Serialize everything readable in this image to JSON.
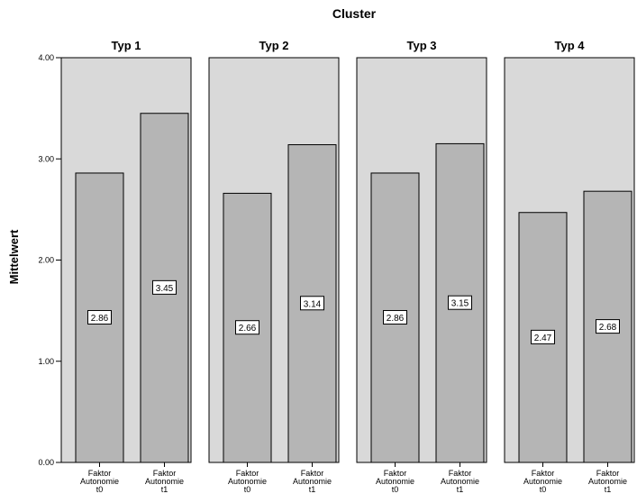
{
  "chart_data": {
    "type": "bar",
    "title": "Cluster",
    "ylabel": "Mittelwert",
    "xlabel": "",
    "ylim": [
      0,
      4
    ],
    "yticks": [
      "0.00",
      "1.00",
      "2.00",
      "3.00",
      "4.00"
    ],
    "categories": [
      [
        "Faktor",
        "Autonomie",
        "t0"
      ],
      [
        "Faktor",
        "Autonomie",
        "t1"
      ]
    ],
    "panels": [
      {
        "name": "Typ 1",
        "values": [
          2.86,
          3.45
        ],
        "labels": [
          "2.86",
          "3.45"
        ]
      },
      {
        "name": "Typ 2",
        "values": [
          2.66,
          3.14
        ],
        "labels": [
          "2.66",
          "3.14"
        ]
      },
      {
        "name": "Typ 3",
        "values": [
          2.86,
          3.15
        ],
        "labels": [
          "2.86",
          "3.15"
        ]
      },
      {
        "name": "Typ 4",
        "values": [
          2.47,
          2.68
        ],
        "labels": [
          "2.47",
          "2.68"
        ]
      }
    ],
    "grid": false,
    "legend": "none",
    "colors": {
      "panel_bg": "#d9d9d9",
      "bar": "#b5b5b5",
      "bar_stroke": "#555555"
    }
  }
}
